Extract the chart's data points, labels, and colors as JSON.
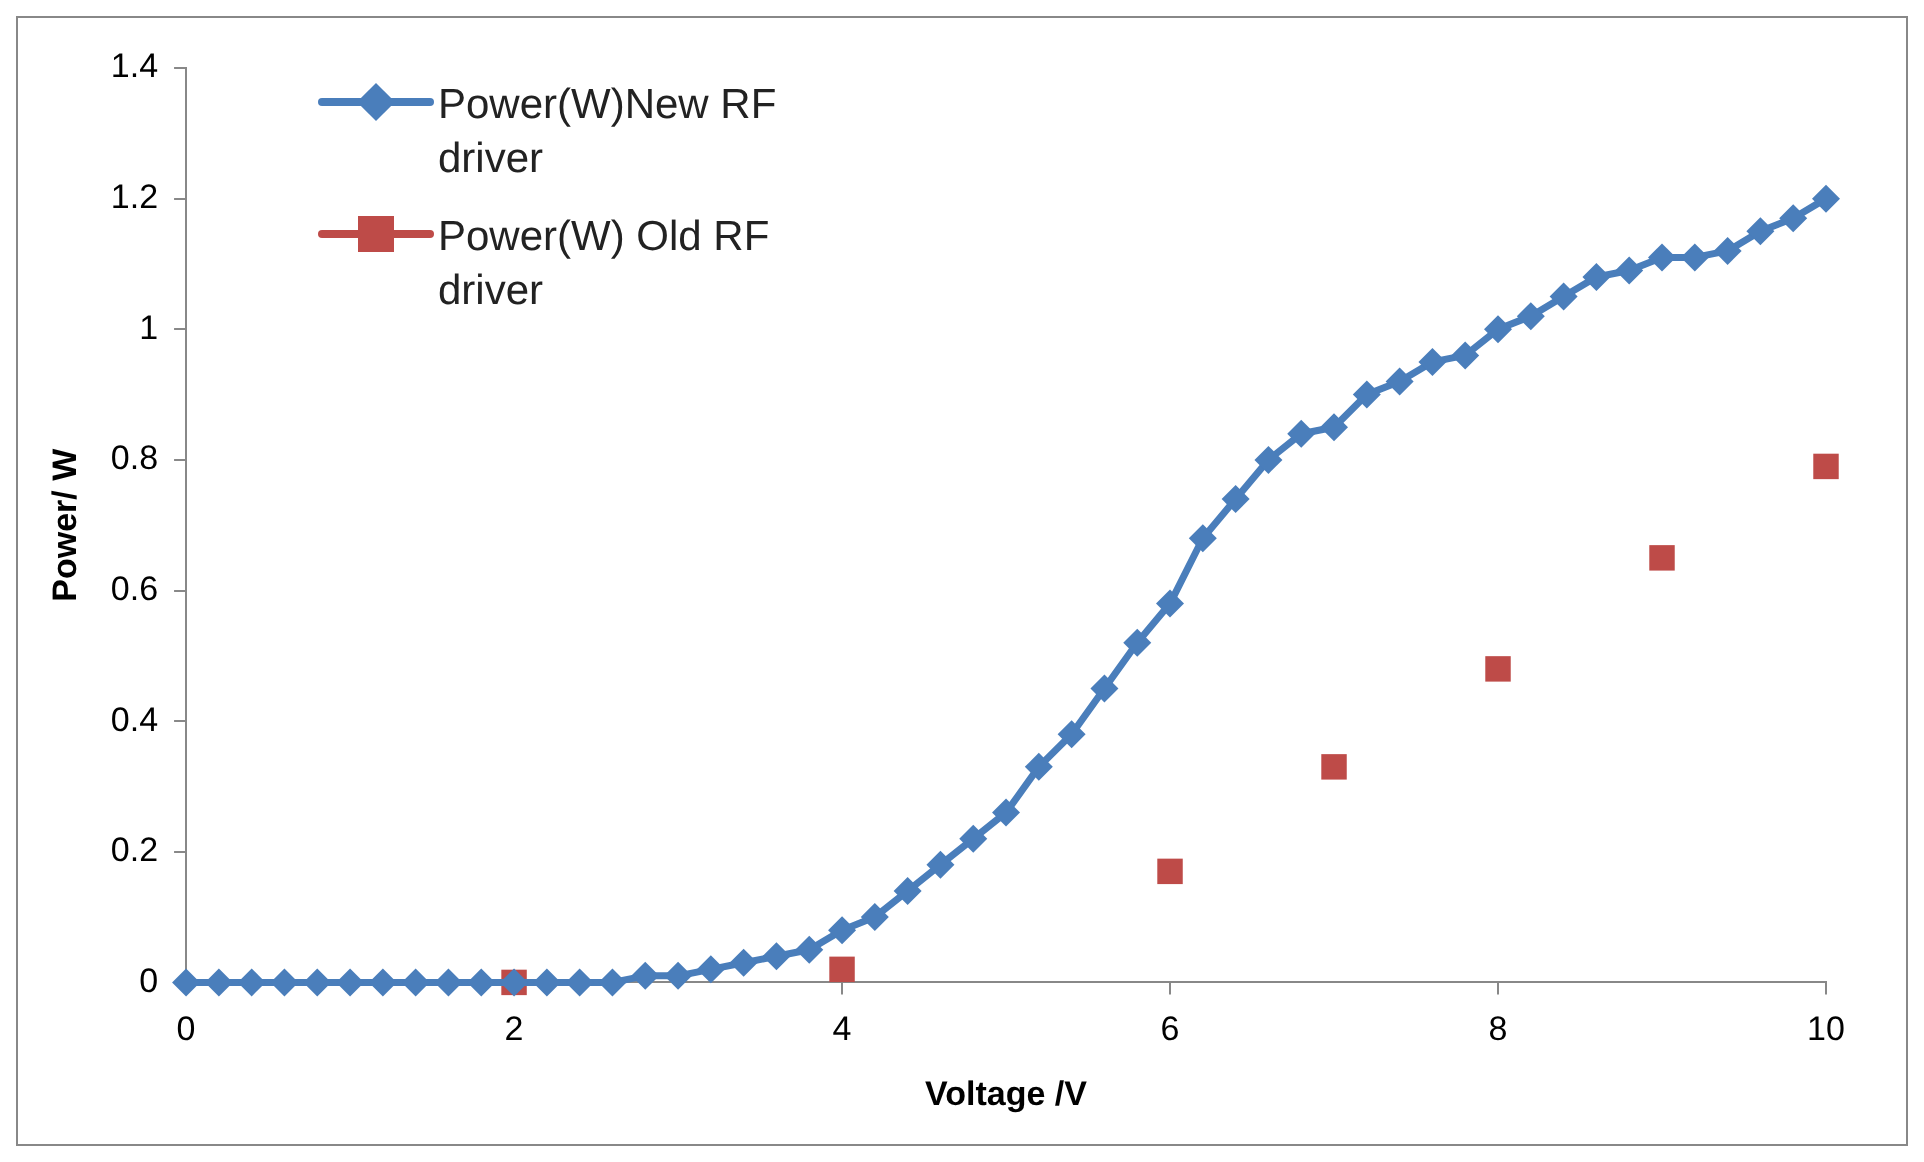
{
  "chart_data": {
    "type": "line",
    "xlabel": "Voltage /V",
    "ylabel": "Power/ W",
    "xlim": [
      0,
      10
    ],
    "xticks": [
      0,
      2,
      4,
      6,
      8,
      10
    ],
    "ylim": [
      0,
      1.4
    ],
    "yticks": [
      0,
      0.2,
      0.4,
      0.6,
      0.8,
      1,
      1.2,
      1.4
    ],
    "grid": false,
    "legend": "top left",
    "series": [
      {
        "name": "Power(W)New RF driver",
        "color": "#4a7ebb",
        "marker": "diamond",
        "x": [
          0,
          0.2,
          0.4,
          0.6,
          0.8,
          1,
          1.2,
          1.4,
          1.6,
          1.8,
          2,
          2.2,
          2.4,
          2.6,
          2.8,
          3,
          3.2,
          3.4,
          3.6,
          3.8,
          4,
          4.2,
          4.4,
          4.6,
          4.8,
          5,
          5.2,
          5.4,
          5.6,
          5.8,
          6,
          6.2,
          6.4,
          6.6,
          6.8,
          7,
          7.2,
          7.4,
          7.6,
          7.8,
          8,
          8.2,
          8.4,
          8.6,
          8.8,
          9,
          9.2,
          9.4,
          9.6,
          9.8,
          10
        ],
        "values": [
          0,
          0,
          0,
          0,
          0,
          0,
          0,
          0,
          0,
          0,
          0,
          0,
          0,
          0,
          0.01,
          0.01,
          0.02,
          0.03,
          0.04,
          0.05,
          0.08,
          0.1,
          0.14,
          0.18,
          0.22,
          0.26,
          0.33,
          0.38,
          0.45,
          0.52,
          0.58,
          0.68,
          0.74,
          0.8,
          0.84,
          0.85,
          0.9,
          0.92,
          0.95,
          0.96,
          1,
          1.02,
          1.05,
          1.08,
          1.09,
          1.11,
          1.11,
          1.12,
          1.15,
          1.17,
          1.2
        ]
      },
      {
        "name": "Power(W) Old RF driver",
        "color": "#be4b48",
        "type": "scatter",
        "marker": "square",
        "x": [
          2,
          4,
          6,
          7,
          8,
          9,
          10
        ],
        "values": [
          0,
          0.02,
          0.17,
          0.33,
          0.48,
          0.65,
          0.79
        ]
      }
    ]
  }
}
